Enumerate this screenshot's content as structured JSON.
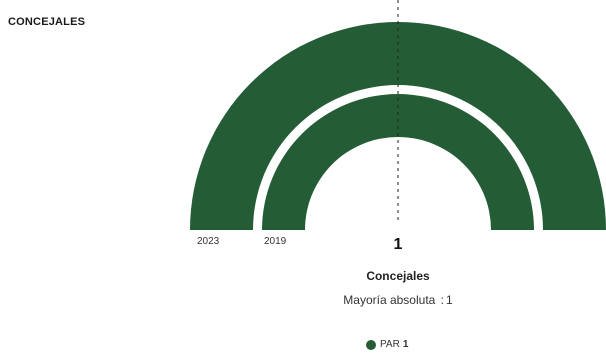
{
  "section_title": "CONCEJALES",
  "chart_data": {
    "type": "semicircle",
    "series": [
      {
        "name": "2023",
        "parties": [
          {
            "name": "PAR",
            "seats": 1
          }
        ]
      },
      {
        "name": "2019",
        "parties": [
          {
            "name": "PAR",
            "seats": 1
          }
        ]
      }
    ],
    "total_seats": 1,
    "majority": 1,
    "colors": {
      "PAR": "#245c36"
    }
  },
  "center": {
    "value": "1",
    "caption": "Concejales",
    "majority_label": "Mayoría absoluta",
    "majority_value": "1"
  },
  "legend": [
    {
      "party": "PAR",
      "seats": "1",
      "color": "#245c36"
    }
  ]
}
